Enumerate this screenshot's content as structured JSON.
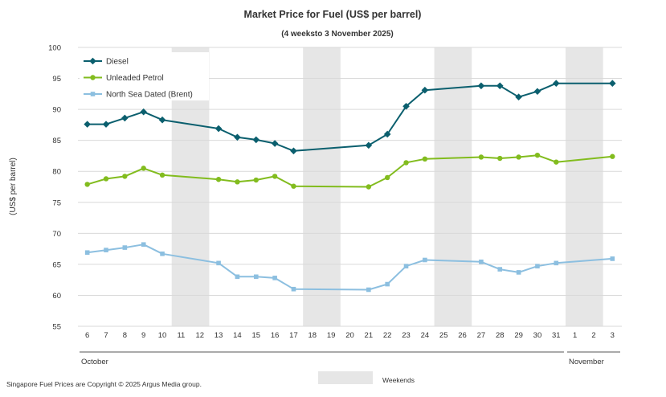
{
  "chart_data": {
    "type": "line",
    "title": "Market Price for Fuel (US$ per barrel)",
    "subtitle": "(4 weeksto 3 November 2025)",
    "ylabel": "(US$ per barrel)",
    "ylim": [
      55,
      100
    ],
    "yticks": [
      55,
      60,
      65,
      70,
      75,
      80,
      85,
      90,
      95,
      100
    ],
    "grid": true,
    "legend_position": "top-left",
    "categories": [
      "6",
      "7",
      "8",
      "9",
      "10",
      "11",
      "12",
      "13",
      "14",
      "15",
      "16",
      "17",
      "18",
      "19",
      "20",
      "21",
      "22",
      "23",
      "24",
      "25",
      "26",
      "27",
      "28",
      "29",
      "30",
      "31",
      "1",
      "2",
      "3"
    ],
    "month_groups": [
      {
        "label": "October",
        "from": 0,
        "to": 25
      },
      {
        "label": "November",
        "from": 26,
        "to": 28
      }
    ],
    "weekends": [
      [
        5,
        6
      ],
      [
        12,
        13
      ],
      [
        19,
        20
      ],
      [
        26,
        27
      ]
    ],
    "weekend_legend_label": "Weekends",
    "series": [
      {
        "name": "Diesel",
        "color": "#0b5f6e",
        "marker": "diamond",
        "values": [
          87.6,
          87.6,
          88.6,
          89.6,
          88.3,
          null,
          null,
          86.9,
          85.5,
          85.1,
          84.5,
          83.3,
          null,
          null,
          null,
          84.2,
          86.0,
          90.5,
          93.1,
          null,
          null,
          93.8,
          93.8,
          92.0,
          92.9,
          94.2,
          null,
          null,
          94.2
        ]
      },
      {
        "name": "Unleaded Petrol",
        "color": "#82bc1e",
        "marker": "circle",
        "values": [
          77.9,
          78.8,
          79.2,
          80.5,
          79.4,
          null,
          null,
          78.7,
          78.3,
          78.6,
          79.2,
          77.6,
          null,
          null,
          null,
          77.5,
          79.0,
          81.4,
          82.0,
          null,
          null,
          82.3,
          82.1,
          82.3,
          82.6,
          81.5,
          null,
          null,
          82.4
        ]
      },
      {
        "name": "North Sea Dated (Brent)",
        "color": "#8cbfe0",
        "marker": "square",
        "values": [
          66.9,
          67.3,
          67.7,
          68.2,
          66.7,
          null,
          null,
          65.2,
          63.0,
          63.0,
          62.8,
          61.0,
          null,
          null,
          null,
          60.9,
          61.8,
          64.7,
          65.7,
          null,
          null,
          65.4,
          64.2,
          63.7,
          64.7,
          65.2,
          null,
          null,
          65.9
        ]
      }
    ]
  },
  "footer": {
    "copyright": "Singapore Fuel Prices are Copyright © 2025 Argus Media group."
  }
}
